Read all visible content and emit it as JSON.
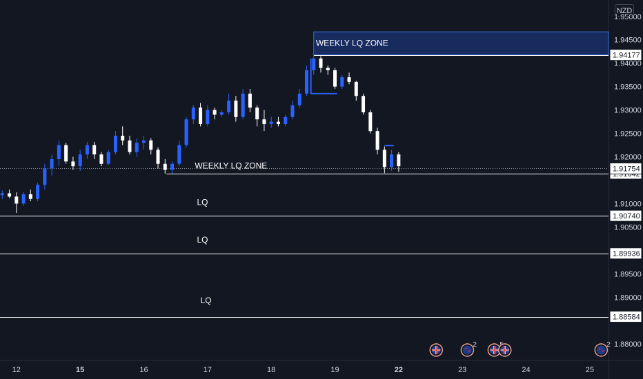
{
  "currency": "NZD",
  "chart_data": {
    "type": "candlestick",
    "quote_currency": "NZD",
    "ylim": [
      1.8765,
      1.9535
    ],
    "y_ticks": [
      1.95,
      1.945,
      1.94,
      1.935,
      1.93,
      1.925,
      1.92,
      1.91,
      1.905,
      1.895,
      1.89,
      1.88
    ],
    "y_tick_labels": [
      "1.95000",
      "1.94500",
      "1.94000",
      "1.93500",
      "1.93000",
      "1.92500",
      "1.92000",
      "1.91000",
      "1.90500",
      "1.89500",
      "1.89000",
      "1.88000"
    ],
    "x_labels": [
      {
        "text": "12",
        "bold": false,
        "index": 2
      },
      {
        "text": "15",
        "bold": true,
        "index": 11
      },
      {
        "text": "16",
        "bold": false,
        "index": 20
      },
      {
        "text": "17",
        "bold": false,
        "index": 29
      },
      {
        "text": "18",
        "bold": false,
        "index": 38
      },
      {
        "text": "19",
        "bold": false,
        "index": 47
      },
      {
        "text": "22",
        "bold": true,
        "index": 56
      },
      {
        "text": "23",
        "bold": false,
        "index": 65
      },
      {
        "text": "24",
        "bold": false,
        "index": 74
      },
      {
        "text": "25",
        "bold": false,
        "index": 83
      }
    ],
    "current_price": {
      "value": 1.91754,
      "label": "1.91754"
    },
    "levels": [
      {
        "value": 1.94177,
        "label": "1.94177",
        "style": "zone"
      },
      {
        "value": 1.91642,
        "label": "1.91642",
        "style": "white"
      },
      {
        "value": 1.9074,
        "label": "1.90740",
        "style": "white"
      },
      {
        "value": 1.89936,
        "label": "1.89936",
        "style": "white"
      },
      {
        "value": 1.88584,
        "label": "1.88584",
        "style": "white"
      }
    ],
    "annotations": [
      {
        "text": "WEEKLY LQ ZONE",
        "price": 1.9437,
        "index": 44.3
      },
      {
        "text": "WEEKLY LQ ZONE",
        "price": 1.9175,
        "index": 27.2
      },
      {
        "text": "LQ",
        "price": 1.9097,
        "index": 27.5
      },
      {
        "text": "LQ",
        "price": 1.9017,
        "index": 27.5
      },
      {
        "text": "LQ",
        "price": 1.8887,
        "index": 28.0
      }
    ],
    "weekly_zone": {
      "top": 1.9467,
      "bottom": 1.94177,
      "start_index": 44.0
    },
    "support_line": {
      "value": 1.91642,
      "start_index": 23.2
    },
    "box_lines": [
      {
        "value": 1.9335,
        "start_index": 43.6,
        "end_index": 47.3
      },
      {
        "value": 1.9224,
        "start_index": 54.0,
        "end_index": 55.3
      }
    ],
    "candles": [
      [
        1.9118,
        1.9128,
        1.911,
        1.9122
      ],
      [
        1.9122,
        1.913,
        1.9112,
        1.9115
      ],
      [
        1.9115,
        1.9124,
        1.908,
        1.91
      ],
      [
        1.91,
        1.9125,
        1.9095,
        1.912
      ],
      [
        1.912,
        1.913,
        1.9105,
        1.911
      ],
      [
        1.911,
        1.9145,
        1.9105,
        1.914
      ],
      [
        1.914,
        1.9185,
        1.913,
        1.9175
      ],
      [
        1.9175,
        1.9205,
        1.916,
        1.9195
      ],
      [
        1.9195,
        1.9235,
        1.918,
        1.9225
      ],
      [
        1.9225,
        1.923,
        1.9185,
        1.919
      ],
      [
        1.919,
        1.92,
        1.9172,
        1.918
      ],
      [
        1.918,
        1.9215,
        1.917,
        1.9205
      ],
      [
        1.9205,
        1.9232,
        1.9195,
        1.9225
      ],
      [
        1.9225,
        1.9232,
        1.9195,
        1.9205
      ],
      [
        1.9205,
        1.921,
        1.918,
        1.9185
      ],
      [
        1.9185,
        1.9215,
        1.9182,
        1.921
      ],
      [
        1.921,
        1.9255,
        1.9205,
        1.9245
      ],
      [
        1.9245,
        1.9265,
        1.9225,
        1.9235
      ],
      [
        1.9235,
        1.9245,
        1.9205,
        1.921
      ],
      [
        1.921,
        1.924,
        1.92,
        1.923
      ],
      [
        1.923,
        1.9245,
        1.9215,
        1.9235
      ],
      [
        1.9235,
        1.924,
        1.9205,
        1.9215
      ],
      [
        1.9215,
        1.922,
        1.9175,
        1.9185
      ],
      [
        1.9185,
        1.9195,
        1.9164,
        1.9172
      ],
      [
        1.9172,
        1.919,
        1.9164,
        1.9185
      ],
      [
        1.9185,
        1.9235,
        1.918,
        1.9225
      ],
      [
        1.9225,
        1.9285,
        1.922,
        1.928
      ],
      [
        1.928,
        1.931,
        1.927,
        1.9305
      ],
      [
        1.9305,
        1.9315,
        1.9265,
        1.927
      ],
      [
        1.927,
        1.931,
        1.9265,
        1.93
      ],
      [
        1.93,
        1.9305,
        1.928,
        1.929
      ],
      [
        1.929,
        1.93,
        1.9285,
        1.9295
      ],
      [
        1.9295,
        1.9335,
        1.929,
        1.932
      ],
      [
        1.932,
        1.933,
        1.9275,
        1.9285
      ],
      [
        1.9285,
        1.9345,
        1.928,
        1.9335
      ],
      [
        1.9335,
        1.9345,
        1.9295,
        1.9305
      ],
      [
        1.9305,
        1.931,
        1.9265,
        1.928
      ],
      [
        1.928,
        1.93,
        1.9255,
        1.927
      ],
      [
        1.927,
        1.9285,
        1.9262,
        1.9275
      ],
      [
        1.9275,
        1.9285,
        1.9265,
        1.927
      ],
      [
        1.927,
        1.929,
        1.9265,
        1.9285
      ],
      [
        1.9285,
        1.932,
        1.928,
        1.931
      ],
      [
        1.931,
        1.9345,
        1.9305,
        1.9335
      ],
      [
        1.9335,
        1.9395,
        1.933,
        1.9385
      ],
      [
        1.9385,
        1.942,
        1.9375,
        1.941
      ],
      [
        1.941,
        1.9415,
        1.938,
        1.939
      ],
      [
        1.939,
        1.9395,
        1.9375,
        1.9385
      ],
      [
        1.9385,
        1.939,
        1.9345,
        1.935
      ],
      [
        1.935,
        1.9375,
        1.9345,
        1.937
      ],
      [
        1.937,
        1.938,
        1.9355,
        1.936
      ],
      [
        1.936,
        1.9362,
        1.932,
        1.933
      ],
      [
        1.933,
        1.9335,
        1.929,
        1.9295
      ],
      [
        1.9295,
        1.93,
        1.925,
        1.9255
      ],
      [
        1.9255,
        1.9262,
        1.9205,
        1.9215
      ],
      [
        1.9215,
        1.9222,
        1.9165,
        1.9178
      ],
      [
        1.9178,
        1.9215,
        1.917,
        1.9205
      ],
      [
        1.9205,
        1.921,
        1.9168,
        1.918
      ]
    ],
    "event_markers": [
      {
        "index": 61.3,
        "flag": "uk",
        "count": ""
      },
      {
        "index": 65.7,
        "flag": "nz",
        "count": "2"
      },
      {
        "index": 69.5,
        "flag": "uk",
        "count": "5"
      },
      {
        "index": 71.0,
        "flag": "uk",
        "count": ""
      },
      {
        "index": 84.6,
        "flag": "nz",
        "count": "2"
      }
    ]
  }
}
